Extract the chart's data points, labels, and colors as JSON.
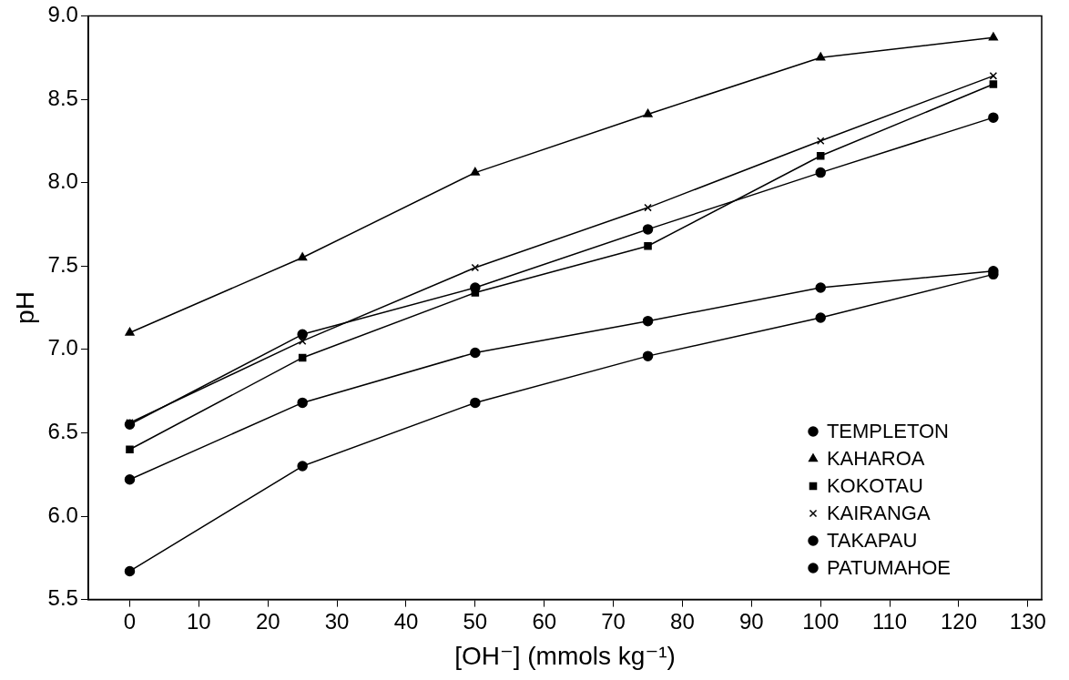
{
  "chart_data": {
    "type": "line",
    "xlabel": "[OH⁻] (mmols kg⁻¹)",
    "ylabel": "pH",
    "x": [
      0,
      25,
      50,
      75,
      100,
      125
    ],
    "series": [
      {
        "name": "TEMPLETON",
        "color": "#000000",
        "marker": "circle",
        "values": [
          6.55,
          7.09,
          7.37,
          7.72,
          8.06,
          8.39
        ]
      },
      {
        "name": "KAHAROA",
        "color": "#000000",
        "marker": "triangle",
        "values": [
          7.1,
          7.55,
          8.06,
          8.41,
          8.75,
          8.87
        ]
      },
      {
        "name": "KOKOTAU",
        "color": "#000000",
        "marker": "square",
        "values": [
          6.4,
          6.95,
          7.34,
          7.62,
          8.16,
          8.59
        ]
      },
      {
        "name": "KAIRANGA",
        "color": "#000000",
        "marker": "cross",
        "values": [
          6.56,
          7.05,
          7.49,
          7.85,
          8.25,
          8.64
        ]
      },
      {
        "name": "TAKAPAU",
        "color": "#000000",
        "marker": "circle",
        "values": [
          6.22,
          6.68,
          6.98,
          7.17,
          7.37,
          7.47
        ]
      },
      {
        "name": "PATUMAHOE",
        "color": "#000000",
        "marker": "circle",
        "values": [
          5.67,
          6.3,
          6.68,
          6.96,
          7.19,
          7.45
        ]
      }
    ],
    "xlim": [
      -6,
      132
    ],
    "xticks": [
      0,
      10,
      20,
      30,
      40,
      50,
      60,
      70,
      80,
      90,
      100,
      110,
      120,
      130
    ],
    "ylim": [
      5.5,
      9.0
    ],
    "yticks": [
      {
        "value": 5.5,
        "label": "5.5"
      },
      {
        "value": 6,
        "label": "6.0"
      },
      {
        "value": 6.5,
        "label": "6.5"
      },
      {
        "value": 7,
        "label": "7.0"
      },
      {
        "value": 7.5,
        "label": "7.5"
      },
      {
        "value": 8,
        "label": "8.0"
      },
      {
        "value": 8.5,
        "label": "8.5"
      },
      {
        "value": 9,
        "label": "9.0"
      }
    ],
    "grid": false,
    "legend": "bottom right",
    "line_style": "solid"
  }
}
